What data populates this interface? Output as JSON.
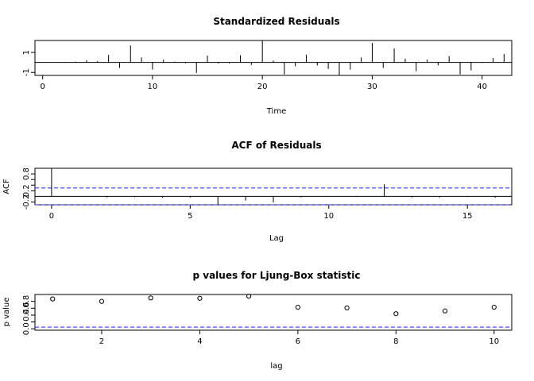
{
  "chart_data": [
    {
      "type": "bar",
      "title": "Standardized Residuals",
      "xlabel": "Time",
      "ylabel": "",
      "xlim": [
        -0.7,
        42.7
      ],
      "ylim": [
        -1.3,
        2.2
      ],
      "xticks": [
        0,
        10,
        20,
        30,
        40
      ],
      "yticks": [
        -1,
        1
      ],
      "hline": 0,
      "x": [
        1,
        2,
        3,
        4,
        5,
        6,
        7,
        8,
        9,
        10,
        11,
        12,
        13,
        14,
        15,
        16,
        17,
        18,
        19,
        20,
        21,
        22,
        23,
        24,
        25,
        26,
        27,
        28,
        29,
        30,
        31,
        32,
        33,
        34,
        35,
        36,
        37,
        38,
        39,
        40,
        41,
        42
      ],
      "values": [
        0.04,
        0.05,
        0.08,
        0.22,
        0.15,
        0.75,
        -0.55,
        1.7,
        0.5,
        -0.7,
        0.28,
        0.08,
        -0.08,
        -1.05,
        0.68,
        -0.1,
        -0.1,
        0.72,
        -0.25,
        2.2,
        0.18,
        -1.2,
        -0.38,
        0.78,
        -0.3,
        -0.65,
        -1.3,
        -0.72,
        0.5,
        1.95,
        -0.55,
        1.4,
        0.38,
        -0.88,
        0.28,
        -0.3,
        0.62,
        -1.2,
        -0.8,
        -0.05,
        0.45,
        0.85
      ]
    },
    {
      "type": "bar",
      "title": "ACF of Residuals",
      "xlabel": "Lag",
      "ylabel": "ACF",
      "xlim": [
        -0.6,
        16.6
      ],
      "ylim": [
        -0.3,
        1.0
      ],
      "xticks": [
        0,
        5,
        10,
        15
      ],
      "yticks": [
        -0.2,
        0.2,
        0.4,
        0.6,
        0.8
      ],
      "ytick_labels": [
        "-0.2",
        "0.2",
        "",
        "",
        "0.8"
      ],
      "hline": 0,
      "ci": [
        0.3,
        -0.3
      ],
      "ci_color": "#4d4dff",
      "x": [
        0,
        1,
        2,
        3,
        4,
        5,
        6,
        7,
        8,
        9,
        10,
        11,
        12,
        13,
        14,
        15,
        16
      ],
      "values": [
        1.0,
        -0.01,
        -0.04,
        -0.03,
        -0.05,
        -0.04,
        -0.28,
        -0.15,
        -0.22,
        -0.04,
        -0.02,
        -0.02,
        0.43,
        -0.04,
        -0.04,
        -0.02,
        -0.05
      ]
    },
    {
      "type": "scatter",
      "title": "p values for Ljung-Box statistic",
      "xlabel": "lag",
      "ylabel": "p value",
      "xlim": [
        0.64,
        10.36
      ],
      "ylim": [
        -0.04,
        1.0
      ],
      "xticks": [
        2,
        4,
        6,
        8,
        10
      ],
      "yticks": [
        0.0,
        0.2,
        0.4,
        0.6,
        0.8
      ],
      "ytick_labels": [
        "0.0",
        "",
        "0.4",
        "0.6",
        "0.8"
      ],
      "hline": 0.05,
      "hline_color": "#4d4dff",
      "x": [
        1,
        2,
        3,
        4,
        5,
        6,
        7,
        8,
        9,
        10
      ],
      "values": [
        0.87,
        0.8,
        0.9,
        0.89,
        0.95,
        0.63,
        0.61,
        0.44,
        0.52,
        0.63
      ]
    }
  ]
}
